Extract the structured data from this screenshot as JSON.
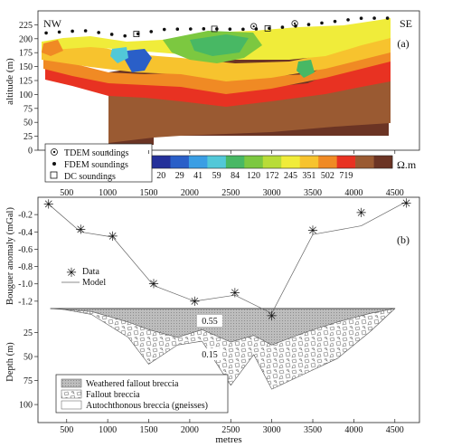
{
  "chart_data": [
    {
      "panel": "(a)",
      "type": "heatmap",
      "labels": {
        "left": "NW",
        "right": "SE",
        "panel": "(a)"
      },
      "ylabel": "altitude (m)",
      "ylim": [
        0,
        250
      ],
      "y_ticks": [
        0,
        25,
        50,
        75,
        100,
        125,
        150,
        175,
        200,
        225
      ],
      "xlim": [
        150,
        4800
      ],
      "x_ticks": [
        500,
        1000,
        1500,
        2000,
        2500,
        3000,
        3500,
        4000,
        4500
      ],
      "colorbar": {
        "unit": "Ω.m",
        "tick_labels": [
          "20",
          "29",
          "41",
          "59",
          "84",
          "120",
          "172",
          "245",
          "351",
          "502",
          "719"
        ],
        "colors": [
          "#24309a",
          "#2a5fc8",
          "#3a9ee4",
          "#52c8d8",
          "#48b864",
          "#7cc840",
          "#b8dc38",
          "#f0ec3a",
          "#f7c32e",
          "#f08a24",
          "#e83222",
          "#9a5a32",
          "#6b3424"
        ]
      },
      "legend": [
        {
          "symbol": "target",
          "label": "TDEM soundings"
        },
        {
          "symbol": "dot",
          "label": "FDEM soundings"
        },
        {
          "symbol": "square",
          "label": "DC soundings"
        }
      ],
      "surface_profile": {
        "x": [
          200,
          700,
          1200,
          1700,
          2200,
          2700,
          3000,
          3300,
          3700,
          4100,
          4500
        ],
        "y": [
          205,
          210,
          200,
          212,
          213,
          212,
          214,
          218,
          225,
          232,
          232
        ]
      },
      "base_profile": {
        "x": [
          200,
          700,
          1200,
          1700,
          2200,
          2700,
          3000,
          3400,
          3900,
          4500
        ],
        "y": [
          158,
          148,
          135,
          138,
          130,
          114,
          122,
          138,
          158,
          162
        ]
      }
    },
    {
      "panel": "(b)",
      "type": "line",
      "ylabel": "Bouguer anomaly (mGal)",
      "ylim": [
        -1.4,
        0
      ],
      "y_ticks": [
        "-0.2",
        "-0.4",
        "-0.6",
        "-0.8",
        "-1.0",
        "-1.2"
      ],
      "y_tick_values": [
        -0.2,
        -0.4,
        -0.6,
        -0.8,
        -1.0,
        -1.2
      ],
      "panel_label": "(b)",
      "series": [
        {
          "name": "Data",
          "marker": "asterisk",
          "x": [
            280,
            670,
            1060,
            1560,
            2060,
            2550,
            3000,
            3500,
            4090,
            4640
          ],
          "y": [
            -0.08,
            -0.37,
            -0.45,
            -1.0,
            -1.2,
            -1.1,
            -1.37,
            -0.38,
            -0.18,
            -0.07
          ]
        },
        {
          "name": "Model",
          "marker": "line",
          "x": [
            280,
            670,
            1060,
            1560,
            2060,
            2550,
            3000,
            3500,
            4090,
            4640
          ],
          "y": [
            -0.08,
            -0.4,
            -0.46,
            -1.02,
            -1.2,
            -1.13,
            -1.34,
            -0.43,
            -0.33,
            -0.05
          ]
        }
      ]
    },
    {
      "panel": "depth",
      "type": "area",
      "ylabel": "Depth (m)",
      "ylim": [
        0,
        115
      ],
      "y_ticks": [
        25,
        50,
        75,
        100
      ],
      "xlabel": "metres",
      "xlim": [
        150,
        4800
      ],
      "x_ticks": [
        500,
        1000,
        1500,
        2000,
        2500,
        3000,
        3500,
        4000,
        4500
      ],
      "density_labels": [
        "0.55",
        "0.15"
      ],
      "legend": [
        {
          "fill": "weathered",
          "label": "Weathered fallout breccia"
        },
        {
          "fill": "fallout",
          "label": "Fallout breccia"
        },
        {
          "fill": "autochthonous",
          "label": "Autochthonous breccia (gneisses)"
        }
      ],
      "weathered_base": {
        "x": [
          300,
          800,
          1250,
          1500,
          1850,
          2150,
          2500,
          2780,
          3000,
          3400,
          3800,
          4200,
          4500
        ],
        "depth": [
          0,
          3,
          14,
          22,
          30,
          22,
          35,
          28,
          38,
          25,
          14,
          5,
          0
        ]
      },
      "fallout_base": {
        "x": [
          400,
          800,
          1250,
          1500,
          1850,
          2150,
          2500,
          2780,
          3000,
          3400,
          3800,
          4200,
          4500
        ],
        "depth": [
          0,
          6,
          30,
          58,
          38,
          34,
          80,
          48,
          84,
          68,
          52,
          24,
          0
        ]
      }
    }
  ]
}
